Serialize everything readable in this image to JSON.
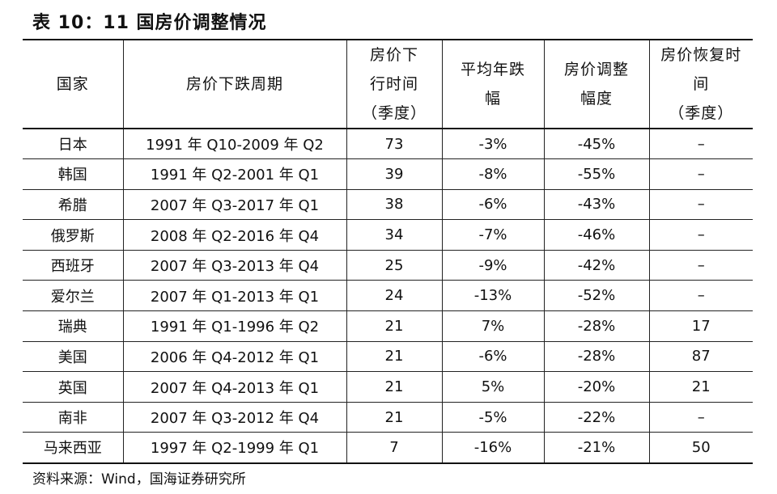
{
  "title": "表 10：11 国房价调整情况",
  "headers": {
    "country": "国家",
    "period": "房价下跌周期",
    "quarters_1": "房价下",
    "quarters_2": "行时间",
    "quarters_3": "（季度）",
    "avg_1": "平均年跌",
    "avg_2": "幅",
    "adj_1": "房价调整",
    "adj_2": "幅度",
    "rec_1": "房价恢复时",
    "rec_2": "间",
    "rec_3": "（季度）"
  },
  "rows": [
    {
      "country": "日本",
      "period": "1991 年 Q10-2009 年 Q2",
      "quarters": "73",
      "avg": "-3%",
      "adj": "-45%",
      "rec": "–"
    },
    {
      "country": "韩国",
      "period": "1991 年 Q2-2001 年 Q1",
      "quarters": "39",
      "avg": "-8%",
      "adj": "-55%",
      "rec": "–"
    },
    {
      "country": "希腊",
      "period": "2007 年 Q3-2017 年 Q1",
      "quarters": "38",
      "avg": "-6%",
      "adj": "-43%",
      "rec": "–"
    },
    {
      "country": "俄罗斯",
      "period": "2008 年 Q2-2016 年 Q4",
      "quarters": "34",
      "avg": "-7%",
      "adj": "-46%",
      "rec": "–"
    },
    {
      "country": "西班牙",
      "period": "2007 年 Q3-2013 年 Q4",
      "quarters": "25",
      "avg": "-9%",
      "adj": "-42%",
      "rec": "–"
    },
    {
      "country": "爱尔兰",
      "period": "2007 年 Q1-2013 年 Q1",
      "quarters": "24",
      "avg": "-13%",
      "adj": "-52%",
      "rec": "–"
    },
    {
      "country": "瑞典",
      "period": "1991 年 Q1-1996 年 Q2",
      "quarters": "21",
      "avg": "7%",
      "adj": "-28%",
      "rec": "17"
    },
    {
      "country": "美国",
      "period": "2006 年 Q4-2012 年 Q1",
      "quarters": "21",
      "avg": "-6%",
      "adj": "-28%",
      "rec": "87"
    },
    {
      "country": "英国",
      "period": "2007 年 Q4-2013 年 Q1",
      "quarters": "21",
      "avg": "5%",
      "adj": "-20%",
      "rec": "21"
    },
    {
      "country": "南非",
      "period": "2007 年 Q3-2012 年 Q4",
      "quarters": "21",
      "avg": "-5%",
      "adj": "-22%",
      "rec": "–"
    },
    {
      "country": "马来西亚",
      "period": "1997 年 Q2-1999 年 Q1",
      "quarters": "7",
      "avg": "-16%",
      "adj": "-21%",
      "rec": "50"
    }
  ],
  "source": "资料来源：Wind，国海证券研究所"
}
